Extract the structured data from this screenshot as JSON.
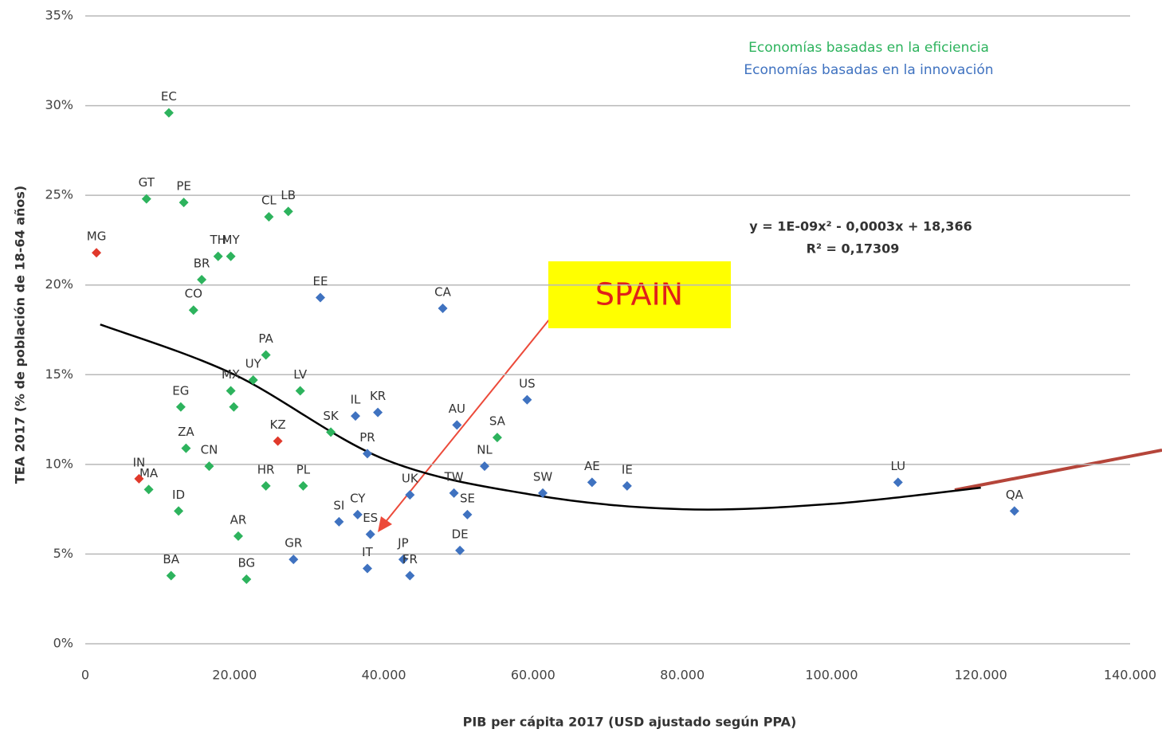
{
  "chart_data": {
    "type": "scatter",
    "xlabel": "PIB per cápita 2017 (USD ajustado según PPA)",
    "ylabel": "TEA 2017 (% de población de 18-64 años)",
    "xlim": [
      0,
      140000
    ],
    "ylim": [
      0,
      35
    ],
    "xticks": [
      0,
      {
        "value": 20000,
        "label": "20.000"
      },
      {
        "value": 40000,
        "label": "40.000"
      },
      {
        "value": 60000,
        "label": "60.000"
      },
      {
        "value": 80000,
        "label": "80.000"
      },
      {
        "value": 100000,
        "label": "100.000"
      },
      {
        "value": 120000,
        "label": "120.000"
      },
      {
        "value": 140000,
        "label": "140.000"
      }
    ],
    "yticks": [
      {
        "value": 0,
        "label": "0%"
      },
      {
        "value": 5,
        "label": "5%"
      },
      {
        "value": 10,
        "label": "10%"
      },
      {
        "value": 15,
        "label": "15%"
      },
      {
        "value": 20,
        "label": "20%"
      },
      {
        "value": 25,
        "label": "25%"
      },
      {
        "value": 30,
        "label": "30%"
      },
      {
        "value": 35,
        "label": "35%"
      }
    ],
    "grid": true,
    "series": [
      {
        "name": "Economías basadas en la eficiencia",
        "color": "#2db35d",
        "labels": [
          "EC",
          "GT",
          "PE",
          "LB",
          "CL",
          "TH",
          "MY",
          "BR",
          "CO",
          "PA",
          "MX",
          "UY",
          "LV",
          "EG",
          null,
          "SK",
          "SA",
          "ZA",
          "CN",
          "MA",
          "HR",
          "PL",
          "ID",
          "AR",
          "BA",
          "BG"
        ],
        "x": [
          11200,
          8200,
          13200,
          27200,
          24600,
          17800,
          19500,
          15600,
          14500,
          24200,
          19500,
          22500,
          28800,
          12800,
          19900,
          32900,
          55200,
          13500,
          16600,
          8500,
          24200,
          29200,
          12500,
          20500,
          11500,
          21600
        ],
        "values": [
          29.6,
          24.8,
          24.6,
          24.1,
          23.8,
          21.6,
          21.6,
          20.3,
          18.6,
          16.1,
          14.1,
          14.7,
          14.1,
          13.2,
          13.2,
          11.8,
          11.5,
          10.9,
          9.9,
          8.6,
          8.8,
          8.8,
          7.4,
          6.0,
          3.8,
          3.6
        ]
      },
      {
        "name": "Economías basadas en la innovación",
        "color": "#3f72c0",
        "labels": [
          "EE",
          "CA",
          "US",
          "IL",
          "KR",
          "AU",
          "PR",
          "NL",
          "AE",
          "IE",
          "LU",
          "SW",
          "TW",
          "UK",
          "CY",
          "SE",
          "QA",
          "SI",
          "ES",
          "DE",
          "GR",
          "JP",
          "IT",
          "FR"
        ],
        "x": [
          31500,
          47900,
          59200,
          36200,
          39200,
          49800,
          37800,
          53500,
          67900,
          72600,
          108900,
          61300,
          49400,
          43500,
          36500,
          51200,
          124500,
          34000,
          38200,
          50200,
          27900,
          42600,
          37800,
          43500
        ],
        "values": [
          19.3,
          18.7,
          13.6,
          12.7,
          12.9,
          12.2,
          10.6,
          9.9,
          9.0,
          8.8,
          9.0,
          8.4,
          8.4,
          8.3,
          7.2,
          7.2,
          7.4,
          6.8,
          6.1,
          5.2,
          4.7,
          4.7,
          4.2,
          3.8
        ]
      },
      {
        "color": "#e0392b",
        "labels": [
          "MG",
          "KZ",
          "IN"
        ],
        "x": [
          1500,
          25800,
          7200
        ],
        "values": [
          21.8,
          11.3,
          9.2
        ]
      }
    ],
    "trendline": {
      "x": [
        2000,
        20000,
        40000,
        60000,
        80000,
        100000,
        120000
      ],
      "values": [
        17.8,
        15.0,
        10.3,
        8.3,
        7.5,
        7.8,
        8.7
      ],
      "color": "#000000"
    },
    "equation": "y = 1E-09x² - 0,0003x + 18,366",
    "r_squared": "R² = 0,17309",
    "annotation": "SPAIN"
  }
}
